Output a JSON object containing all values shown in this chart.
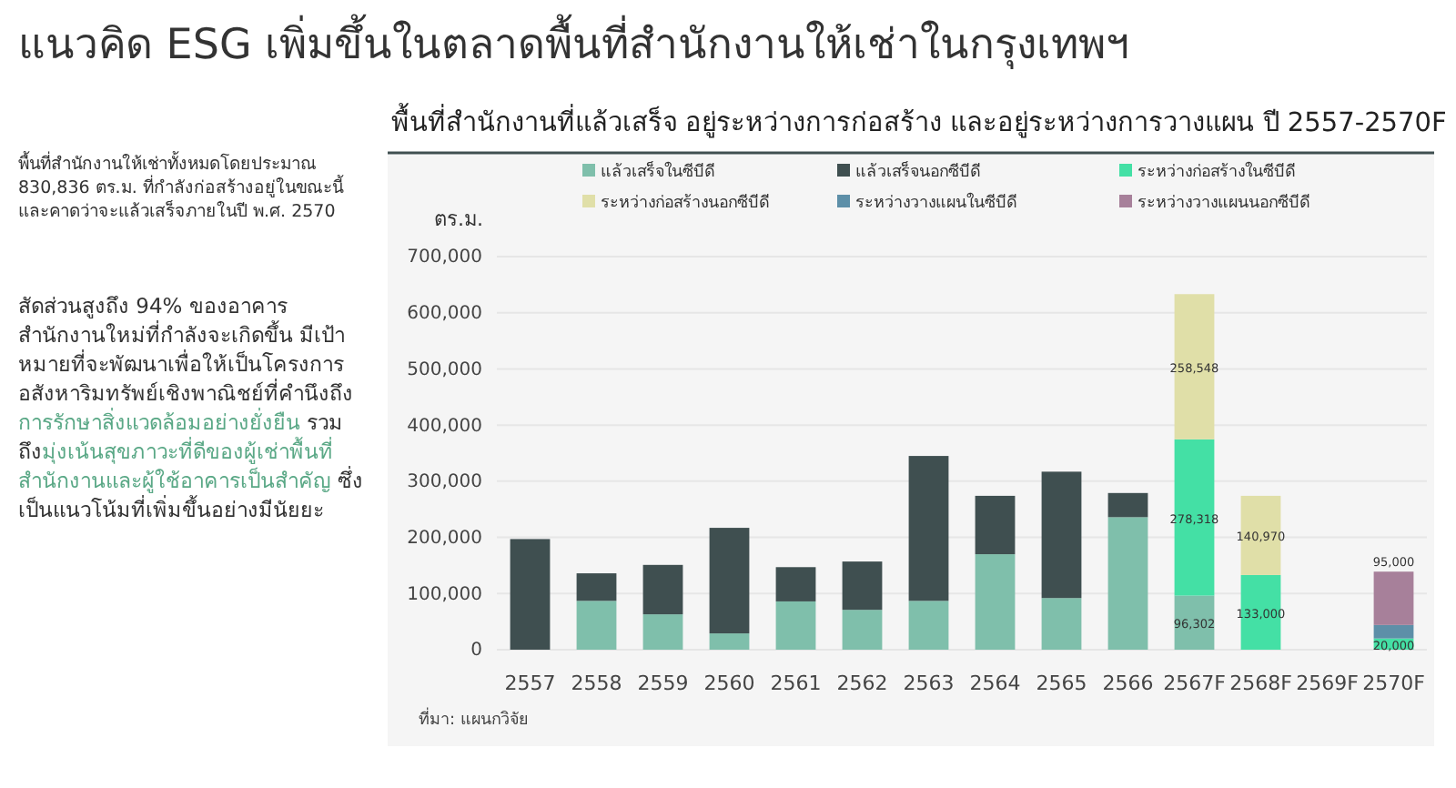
{
  "chart_data": {
    "type": "bar",
    "title": "แนวคิด ESG เพิ่มขึ้นในตลาดพื้นที่สำนักงานให้เช่าในกรุงเทพฯ",
    "subtitle": "พื้นที่สำนักงานที่แล้วเสร็จ อยู่ระหว่างการก่อสร้าง และอยู่ระหว่างการวางแผน ปี 2557-2570F",
    "ylabel": "ตร.ม.",
    "annotations": [
      "พื้นที่สำนักงานให้เช่าทั้งหมดโดยประมาณ 830,836 ตร.ม. ที่กำลังก่อสร้างอยู่ในขณะนี้ และคาดว่าจะแล้วเสร็จภายในปี พ.ศ. 2570",
      "สัดส่วนสูงถึง 94% ของอาคารสำนักงานใหม่ที่กำลังจะเกิดขึ้น มีเป้าหมายที่จะพัฒนาเพื่อให้เป็นโครงการอสังหาริมทรัพย์เชิงพาณิชย์ที่คำนึงถึง",
      "การรักษาสิ่งแวดล้อมอย่างยั่งยืน",
      " รวมถึง",
      "มุ่งเน้นสุขภาวะที่ดีของผู้เช่าพื้นที่สำนักงานและผู้ใช้อาคารเป็นสำคัญ",
      " ซึ่งเป็นแนวโน้มที่เพิ่มขึ้นอย่างมีนัยยะ",
      "ที่มา: แผนกวิจัย"
    ],
    "categories": [
      "2557",
      "2558",
      "2559",
      "2560",
      "2561",
      "2562",
      "2563",
      "2564",
      "2565",
      "2566",
      "2567F",
      "2568F",
      "2569F",
      "2570F"
    ],
    "stacked": true,
    "ylim": [
      0,
      700000
    ],
    "yticks": [
      {
        "value": 0,
        "label": "0"
      },
      {
        "value": 100000,
        "label": "100,000"
      },
      {
        "value": 200000,
        "label": "200,000"
      },
      {
        "value": 300000,
        "label": "300,000"
      },
      {
        "value": 400000,
        "label": "400,000"
      },
      {
        "value": 500000,
        "label": "500,000"
      },
      {
        "value": 600000,
        "label": "600,000"
      },
      {
        "value": 700000,
        "label": "700,000"
      }
    ],
    "grid": "y",
    "legend": "top",
    "series": [
      {
        "name": "แล้วเสร็จในซีบีดี",
        "color": "#7fbfab",
        "values": [
          0,
          87000,
          63000,
          29000,
          86000,
          71000,
          87000,
          170000,
          92000,
          236000,
          96302,
          null,
          null,
          null
        ],
        "value_labels": [
          null,
          null,
          null,
          null,
          null,
          null,
          null,
          null,
          null,
          null,
          "96,302",
          null,
          null,
          null
        ]
      },
      {
        "name": "แล้วเสร็จนอกซีบีดี",
        "color": "#3f4f50",
        "values": [
          197000,
          49000,
          88000,
          188000,
          61000,
          86000,
          258000,
          104000,
          225000,
          43000,
          null,
          null,
          null,
          null
        ]
      },
      {
        "name": "ระหว่างก่อสร้างในซีบีดี",
        "color": "#44e0a5",
        "values": [
          null,
          null,
          null,
          null,
          null,
          null,
          null,
          null,
          null,
          null,
          278318,
          133000,
          null,
          20000
        ],
        "value_labels": [
          null,
          null,
          null,
          null,
          null,
          null,
          null,
          null,
          null,
          null,
          "278,318",
          "133,000",
          null,
          "20,000"
        ]
      },
      {
        "name": "ระหว่างก่อสร้างนอกซีบีดี",
        "color": "#e0dfa8",
        "values": [
          null,
          null,
          null,
          null,
          null,
          null,
          null,
          null,
          null,
          null,
          258548,
          140970,
          null,
          null
        ],
        "value_labels": [
          null,
          null,
          null,
          null,
          null,
          null,
          null,
          null,
          null,
          null,
          "258,548",
          "140,970",
          null,
          null
        ]
      },
      {
        "name": "ระหว่างวางแผนในซีบีดี",
        "color": "#5d8fa8",
        "values": [
          null,
          null,
          null,
          null,
          null,
          null,
          null,
          null,
          null,
          null,
          null,
          null,
          null,
          24000
        ]
      },
      {
        "name": "ระหว่างวางแผนนอกซีบีดี",
        "color": "#a7809a",
        "values": [
          null,
          null,
          null,
          null,
          null,
          null,
          null,
          null,
          null,
          null,
          null,
          null,
          null,
          95000
        ],
        "value_labels": [
          null,
          null,
          null,
          null,
          null,
          null,
          null,
          null,
          null,
          null,
          null,
          null,
          null,
          "95,000"
        ]
      }
    ]
  }
}
